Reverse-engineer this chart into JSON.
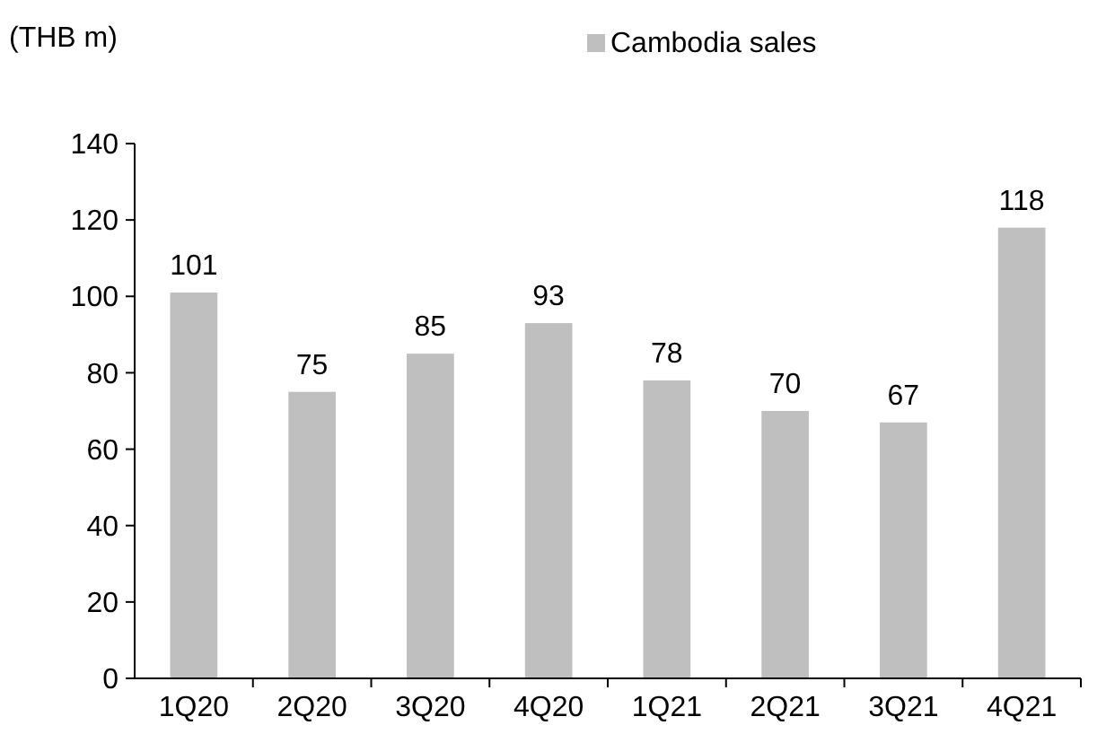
{
  "chart_data": {
    "type": "bar",
    "ylabel": "(THB m)",
    "categories": [
      "1Q20",
      "2Q20",
      "3Q20",
      "4Q20",
      "1Q21",
      "2Q21",
      "3Q21",
      "4Q21"
    ],
    "series": [
      {
        "name": "Cambodia sales",
        "color": "#bfbfbf",
        "values": [
          101,
          75,
          85,
          93,
          78,
          70,
          67,
          118
        ]
      }
    ],
    "ylim": [
      0,
      140
    ],
    "yticks": [
      0,
      20,
      40,
      60,
      80,
      100,
      120,
      140
    ],
    "grid": false,
    "legend": "top",
    "data_labels": true
  }
}
